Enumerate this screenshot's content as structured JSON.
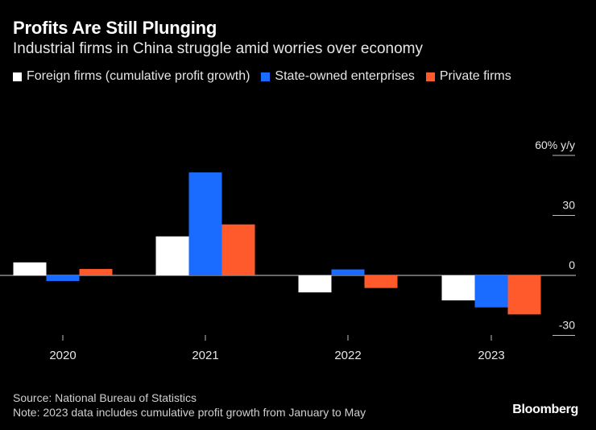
{
  "header": {
    "title": "Profits Are Still Plunging",
    "subtitle": "Industrial firms in China struggle amid worries over economy"
  },
  "colors": {
    "foreign": "#ffffff",
    "state": "#1a6bff",
    "private": "#ff5a2c",
    "axis": "#bdbdbd",
    "text": "#e6e6e6"
  },
  "chart_data": {
    "type": "bar",
    "categories": [
      "2020",
      "2021",
      "2022",
      "2023"
    ],
    "series": [
      {
        "name": "Foreign firms (cumulative profit growth)",
        "key": "foreign",
        "values": [
          6.5,
          19.5,
          -8.5,
          -12.5
        ]
      },
      {
        "name": "State-owned enterprises",
        "key": "state",
        "values": [
          -2.8,
          51.5,
          3.0,
          -16.0
        ]
      },
      {
        "name": "Private firms",
        "key": "private",
        "values": [
          3.2,
          25.5,
          -6.3,
          -19.5
        ]
      }
    ],
    "y_ticks": [
      {
        "value": 60,
        "label": "60% y/y"
      },
      {
        "value": 30,
        "label": "30"
      },
      {
        "value": 0,
        "label": "0"
      },
      {
        "value": -30,
        "label": "-30"
      }
    ],
    "ylim": [
      -30,
      60
    ],
    "ylabel": "% y/y",
    "xlabel": ""
  },
  "footer": {
    "source": "Source: National Bureau of Statistics",
    "note": "Note: 2023 data includes cumulative profit growth from January to May",
    "brand": "Bloomberg"
  }
}
